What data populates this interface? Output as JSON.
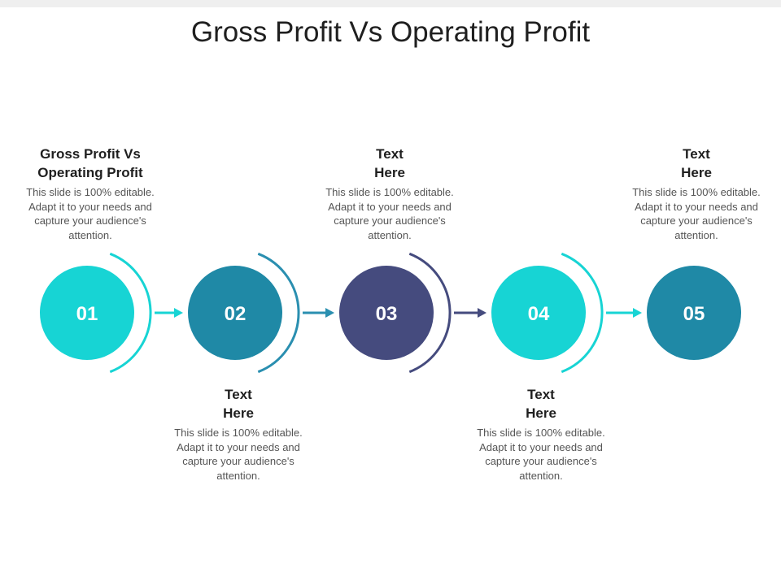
{
  "title": "Gross Profit Vs Operating Profit",
  "colors": {
    "cyan": "#17d4d4",
    "teal": "#1f89a6",
    "navy": "#454b7e",
    "arc_teal": "#2a8fb0"
  },
  "nodes": [
    {
      "label": "01",
      "color": "#17d4d4",
      "arc_color": "#17d4d4"
    },
    {
      "label": "02",
      "color": "#1f89a6",
      "arc_color": "#2a8fb0"
    },
    {
      "label": "03",
      "color": "#454b7e",
      "arc_color": "#454b7e"
    },
    {
      "label": "04",
      "color": "#17d4d4",
      "arc_color": "#17d4d4"
    },
    {
      "label": "05",
      "color": "#1f89a6",
      "arc_color": null
    }
  ],
  "blocks": [
    {
      "heading_line1": "Gross Profit Vs",
      "heading_line2": "Operating Profit",
      "body": "This slide is 100% editable. Adapt it to your needs and capture your audience's attention."
    },
    {
      "heading_line1": "Text",
      "heading_line2": "Here",
      "body": "This slide is 100% editable. Adapt it to your needs and capture your audience's attention."
    },
    {
      "heading_line1": "Text",
      "heading_line2": "Here",
      "body": "This slide is 100% editable. Adapt it to your needs and capture your audience's attention."
    },
    {
      "heading_line1": "Text",
      "heading_line2": "Here",
      "body": "This slide is 100% editable. Adapt it to your needs and capture your audience's attention."
    },
    {
      "heading_line1": "Text",
      "heading_line2": "Here",
      "body": "This slide is 100% editable. Adapt it to your needs and capture your audience's attention."
    }
  ]
}
